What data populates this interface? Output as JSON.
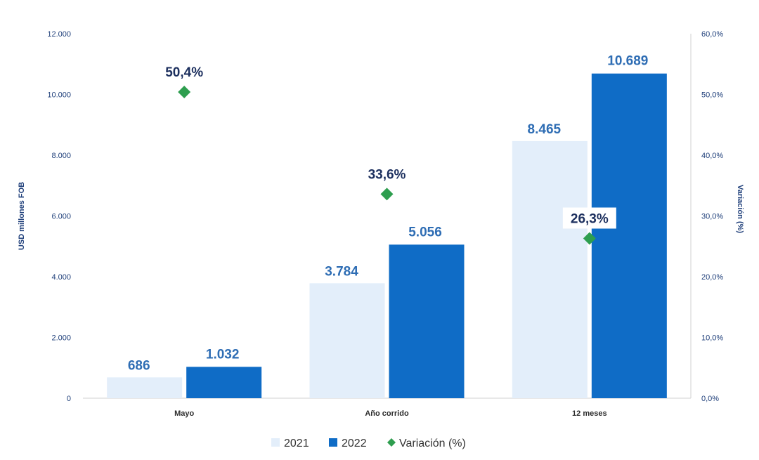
{
  "chart_data": {
    "type": "bar",
    "categories": [
      "Mayo",
      "Año corrido",
      "12 meses"
    ],
    "series": [
      {
        "name": "2021",
        "values": [
          686,
          3784,
          8465
        ],
        "labels": [
          "686",
          "3.784",
          "8.465"
        ],
        "color": "#e3eefa"
      },
      {
        "name": "2022",
        "values": [
          1032,
          5056,
          10689
        ],
        "labels": [
          "1.032",
          "5.056",
          "10.689"
        ],
        "color": "#0f6cc6"
      }
    ],
    "secondary_series": {
      "name": "Variación (%)",
      "type": "scatter",
      "values": [
        50.4,
        33.6,
        26.3
      ],
      "labels": [
        "50,4%",
        "33,6%",
        "26,3%"
      ],
      "color": "#2e9e4f",
      "marker": "diamond"
    },
    "ylabel": "USD millones FOB",
    "y2label": "Variación (%)",
    "ylim": [
      0,
      12000
    ],
    "y2lim": [
      0,
      60
    ],
    "yticks": [
      "0",
      "2.000",
      "4.000",
      "6.000",
      "8.000",
      "10.000",
      "12.000"
    ],
    "y2ticks": [
      "0,0%",
      "10,0%",
      "20,0%",
      "30,0%",
      "40,0%",
      "50,0%",
      "60,0%"
    ],
    "legend_position": "bottom",
    "grid": false
  }
}
